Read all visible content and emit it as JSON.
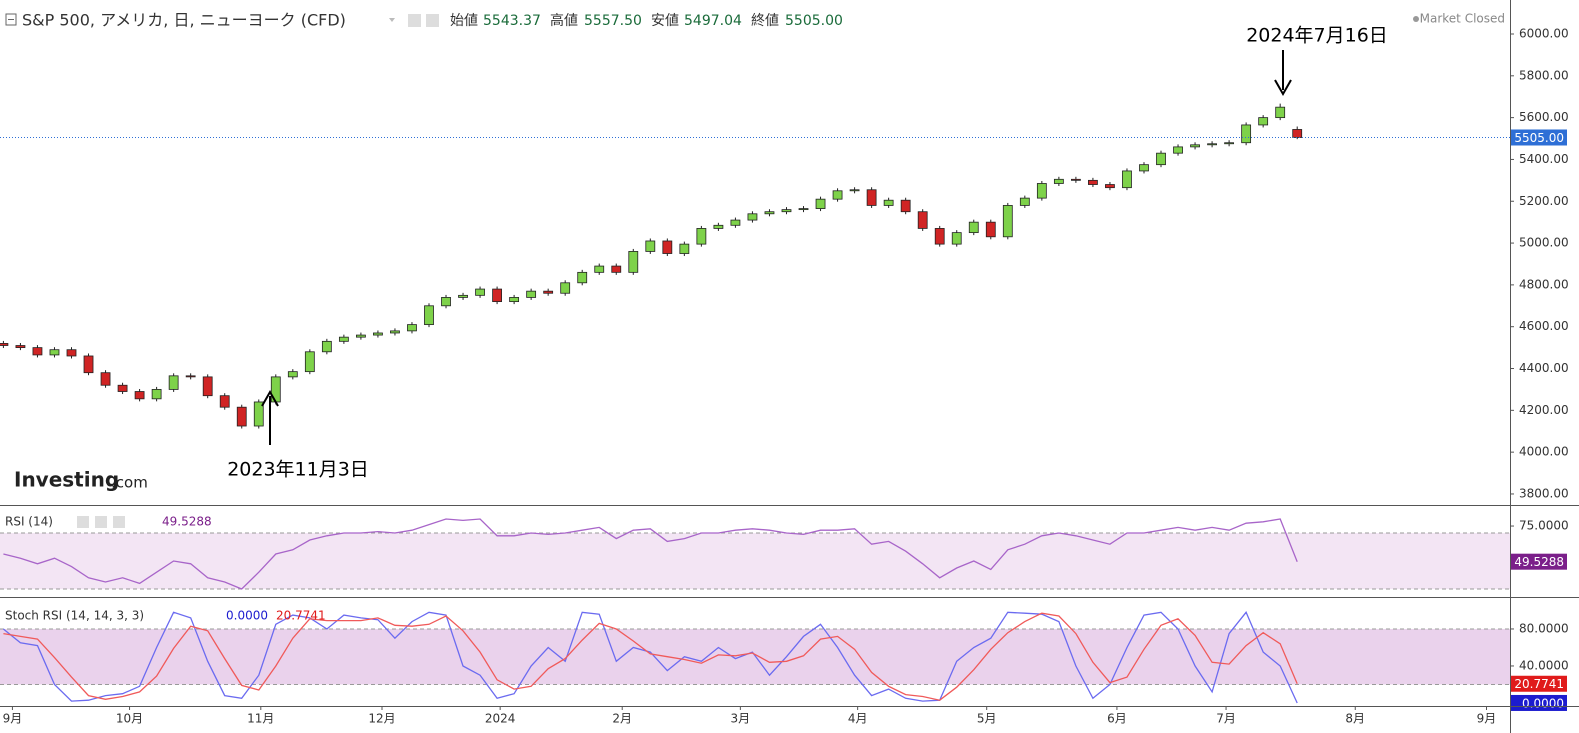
{
  "chart_data": [
    {
      "type": "candlestick",
      "title": "S&P 500, アメリカ, 日, ニューヨーク (CFD)",
      "ohlc_header": [
        {
          "label": "始値",
          "value": "5543.37"
        },
        {
          "label": "高値",
          "value": "5557.50"
        },
        {
          "label": "安値",
          "value": "5497.04"
        },
        {
          "label": "終値",
          "value": "5505.00"
        }
      ],
      "status": "Market Closed",
      "logo": "Investing",
      "logo_suffix": ".com",
      "annotations": [
        "2023年11月3日",
        "2024年7月16日"
      ],
      "up_color": "#7ed24a",
      "down_color": "#d02424",
      "open": [
        4520,
        4510,
        4500,
        4465,
        4490,
        4460,
        4380,
        4320,
        4290,
        4255,
        4300,
        4365,
        4360,
        4270,
        4215,
        4125,
        4240,
        4360,
        4385,
        4480,
        4530,
        4550,
        4560,
        4570,
        4580,
        4610,
        4700,
        4740,
        4750,
        4780,
        4720,
        4740,
        4770,
        4760,
        4810,
        4860,
        4890,
        4860,
        4960,
        5010,
        4950,
        4995,
        5070,
        5085,
        5110,
        5140,
        5150,
        5160,
        5165,
        5210,
        5250,
        5255,
        5180,
        5205,
        5150,
        5070,
        4995,
        5050,
        5100,
        5030,
        5180,
        5215,
        5285,
        5305,
        5300,
        5280,
        5265,
        5345,
        5375,
        5430,
        5460,
        5470,
        5475,
        5480,
        5565,
        5600,
        5543.37
      ],
      "high": [
        4532,
        4522,
        4512,
        4502,
        4502,
        4472,
        4392,
        4332,
        4302,
        4312,
        4377,
        4377,
        4372,
        4282,
        4227,
        4252,
        4372,
        4397,
        4492,
        4542,
        4562,
        4572,
        4582,
        4592,
        4622,
        4712,
        4752,
        4762,
        4792,
        4792,
        4752,
        4782,
        4782,
        4822,
        4872,
        4902,
        4902,
        4972,
        5022,
        5022,
        5007,
        5082,
        5097,
        5122,
        5152,
        5162,
        5172,
        5177,
        5222,
        5262,
        5267,
        5267,
        5217,
        5217,
        5162,
        5082,
        5062,
        5112,
        5112,
        5192,
        5227,
        5297,
        5317,
        5317,
        5312,
        5292,
        5357,
        5387,
        5442,
        5472,
        5482,
        5487,
        5492,
        5577,
        5612,
        5667,
        5557.5
      ],
      "low": [
        4498,
        4488,
        4453,
        4453,
        4448,
        4368,
        4308,
        4278,
        4243,
        4243,
        4288,
        4348,
        4258,
        4203,
        4113,
        4113,
        4228,
        4348,
        4373,
        4468,
        4518,
        4538,
        4548,
        4558,
        4568,
        4598,
        4688,
        4728,
        4738,
        4708,
        4708,
        4728,
        4748,
        4748,
        4798,
        4848,
        4848,
        4848,
        4948,
        4938,
        4938,
        4983,
        5058,
        5073,
        5098,
        5128,
        5138,
        5148,
        5153,
        5198,
        5238,
        5168,
        5168,
        5138,
        5058,
        4983,
        4983,
        5038,
        5018,
        5018,
        5168,
        5203,
        5273,
        5288,
        5268,
        5253,
        5253,
        5333,
        5363,
        5418,
        5448,
        5458,
        5463,
        5468,
        5553,
        5588,
        5497.04
      ],
      "close": [
        4510,
        4500,
        4465,
        4490,
        4460,
        4380,
        4320,
        4290,
        4255,
        4300,
        4365,
        4360,
        4270,
        4215,
        4125,
        4240,
        4360,
        4385,
        4480,
        4530,
        4550,
        4560,
        4570,
        4580,
        4610,
        4700,
        4740,
        4750,
        4780,
        4720,
        4740,
        4770,
        4760,
        4810,
        4860,
        4890,
        4860,
        4960,
        5010,
        4950,
        4995,
        5070,
        5085,
        5110,
        5140,
        5150,
        5160,
        5165,
        5210,
        5250,
        5255,
        5180,
        5205,
        5150,
        5070,
        4995,
        5050,
        5100,
        5030,
        5180,
        5215,
        5285,
        5305,
        5300,
        5280,
        5265,
        5345,
        5375,
        5430,
        5460,
        5470,
        5475,
        5480,
        5565,
        5600,
        5650,
        5505
      ],
      "price_line": {
        "value": 5505,
        "label": "5505.00",
        "color": "#2e6fd6"
      },
      "xlim": [
        -0.2,
        88.5
      ],
      "ylim": [
        3747.2,
        6162.6
      ],
      "yticks": [
        {
          "value": 3800,
          "label": "3800.00"
        },
        {
          "value": 4000,
          "label": "4000.00"
        },
        {
          "value": 4200,
          "label": "4200.00"
        },
        {
          "value": 4400,
          "label": "4400.00"
        },
        {
          "value": 4600,
          "label": "4600.00"
        },
        {
          "value": 4800,
          "label": "4800.00"
        },
        {
          "value": 5000,
          "label": "5000.00"
        },
        {
          "value": 5200,
          "label": "5200.00"
        },
        {
          "value": 5400,
          "label": "5400.00"
        },
        {
          "value": 5600,
          "label": "5600.00"
        },
        {
          "value": 5800,
          "label": "5800.00"
        },
        {
          "value": 6000,
          "label": "6000.00"
        }
      ]
    },
    {
      "type": "line",
      "title": "RSI (14)",
      "band": [
        30,
        70
      ],
      "band_color": "#f3e5f4",
      "series": [
        {
          "color": "#a865c9",
          "label_color": "#7b1f8a",
          "current_label": "49.5288",
          "values": [
            55,
            52,
            48,
            52,
            46,
            38,
            35,
            38,
            34,
            42,
            50,
            48,
            38,
            35,
            30,
            42,
            55,
            58,
            65,
            68,
            70,
            70,
            71,
            70,
            72,
            76,
            80,
            79,
            80,
            68,
            68,
            70,
            69,
            70,
            72,
            74,
            66,
            72,
            73,
            64,
            66,
            70,
            70,
            72,
            73,
            72,
            70,
            69,
            72,
            72,
            73,
            62,
            64,
            57,
            48,
            38,
            45,
            50,
            44,
            58,
            62,
            68,
            70,
            68,
            65,
            62,
            70,
            70,
            72,
            74,
            72,
            74,
            72,
            77,
            78,
            80,
            49.5288
          ]
        }
      ],
      "xlim": [
        -0.2,
        88.5
      ],
      "ylim": [
        24.3,
        88.6
      ],
      "yticks": [
        {
          "value": 75,
          "label": "75.0000"
        }
      ]
    },
    {
      "type": "line",
      "title": "Stoch RSI (14, 14, 3, 3)",
      "band": [
        20,
        80
      ],
      "band_color": "#ead2ec",
      "series": [
        {
          "color": "#6b6bf0",
          "label_color": "#1c1ccf",
          "current_label": "0.0000",
          "values": [
            80,
            65,
            62,
            20,
            2,
            3,
            8,
            10,
            18,
            60,
            98,
            92,
            45,
            8,
            5,
            30,
            85,
            95,
            92,
            80,
            95,
            92,
            90,
            70,
            88,
            98,
            95,
            40,
            30,
            5,
            10,
            40,
            60,
            45,
            98,
            96,
            45,
            60,
            55,
            35,
            50,
            45,
            60,
            48,
            55,
            30,
            50,
            72,
            85,
            60,
            30,
            8,
            15,
            5,
            2,
            3,
            45,
            60,
            70,
            98,
            97,
            96,
            88,
            40,
            5,
            20,
            60,
            95,
            98,
            80,
            40,
            12,
            75,
            98,
            55,
            40,
            0
          ]
        },
        {
          "color": "#f05a5a",
          "label_color": "#e01b1b",
          "current_label": "20.7741",
          "values": [
            75,
            72,
            69,
            49,
            28,
            8,
            4,
            7,
            12,
            29,
            59,
            83,
            78,
            48,
            19,
            14,
            40,
            70,
            91,
            89,
            89,
            89,
            92,
            84,
            83,
            85,
            94,
            78,
            55,
            25,
            15,
            18,
            37,
            48,
            68,
            86,
            80,
            67,
            53,
            50,
            47,
            43,
            52,
            51,
            54,
            44,
            45,
            51,
            69,
            72,
            58,
            33,
            18,
            9,
            7,
            3,
            17,
            36,
            58,
            76,
            88,
            97,
            94,
            75,
            44,
            22,
            28,
            58,
            84,
            91,
            73,
            44,
            42,
            62,
            76,
            64,
            20.7741
          ]
        }
      ],
      "xlim": [
        -0.2,
        88.5
      ],
      "ylim": [
        -2.2,
        112.4
      ],
      "yticks": [
        {
          "value": 40,
          "label": "40.0000"
        },
        {
          "value": 80,
          "label": "80.0000"
        }
      ],
      "xticks": [
        {
          "value": 0.53,
          "label": "9月"
        },
        {
          "value": 7.41,
          "label": "10月"
        },
        {
          "value": 15.12,
          "label": "11月"
        },
        {
          "value": 22.24,
          "label": "12月"
        },
        {
          "value": 29.18,
          "label": "2024"
        },
        {
          "value": 36.35,
          "label": "2月"
        },
        {
          "value": 43.29,
          "label": "3月"
        },
        {
          "value": 50.18,
          "label": "4月"
        },
        {
          "value": 57.76,
          "label": "5月"
        },
        {
          "value": 65.41,
          "label": "6月"
        },
        {
          "value": 71.82,
          "label": "7月"
        },
        {
          "value": 79.41,
          "label": "8月"
        },
        {
          "value": 87.12,
          "label": "9月"
        }
      ]
    }
  ]
}
